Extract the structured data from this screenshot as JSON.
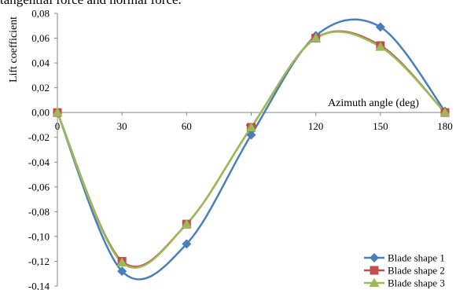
{
  "caption": "tangential force and normal force.",
  "chart_data": {
    "type": "line",
    "xlabel": "Azimuth angle (deg)",
    "ylabel": "Lift coefficient",
    "x": [
      0,
      30,
      60,
      90,
      120,
      150,
      180
    ],
    "x_ticks": [
      "0",
      "30",
      "60",
      "90",
      "120",
      "150",
      "180"
    ],
    "y_ticks": [
      "0,08",
      "0,06",
      "0,04",
      "0,02",
      "0,00",
      "-0,02",
      "-0,04",
      "-0,06",
      "-0,08",
      "-0,10",
      "-0,12",
      "-0,14"
    ],
    "xlim": [
      0,
      180
    ],
    "ylim": [
      -0.14,
      0.08
    ],
    "grid": false,
    "legend_position": "bottom-right",
    "series": [
      {
        "name": "Blade shape 1",
        "color": "#4a7ebb",
        "marker": "diamond",
        "values": [
          0.0,
          -0.128,
          -0.106,
          -0.018,
          0.062,
          0.069,
          0.001
        ]
      },
      {
        "name": "Blade shape 2",
        "color": "#c0504d",
        "marker": "square",
        "values": [
          0.0,
          -0.12,
          -0.09,
          -0.012,
          0.06,
          0.054,
          0.0
        ]
      },
      {
        "name": "Blade shape 3",
        "color": "#9bbb59",
        "marker": "triangle",
        "values": [
          0.0,
          -0.121,
          -0.09,
          -0.012,
          0.06,
          0.053,
          0.0
        ]
      }
    ]
  }
}
